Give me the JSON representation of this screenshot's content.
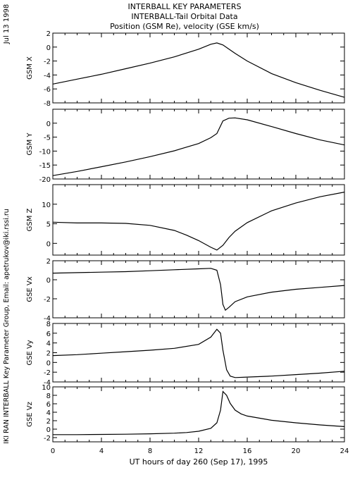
{
  "header": {
    "line1": "INTERBALL KEY PARAMETERS",
    "line2": "INTERBALL-Tail Orbital Data",
    "line3": "Position (GSM Re), velocity (GSE km/s)"
  },
  "side": {
    "date": "Jul 13 1998",
    "credit": "IKI RAN INTERBALL Key Parameter Group, Email: apetrukov@iki.rssi.ru"
  },
  "chart_data": {
    "type": "line",
    "x_label": "UT hours of day 260 (Sep 17), 1995",
    "x_range": [
      0,
      24
    ],
    "x_ticks": [
      0,
      4,
      8,
      12,
      16,
      20,
      24
    ],
    "panels": [
      {
        "label": "GSM X",
        "ylim": [
          -8,
          2
        ],
        "yticks": [
          -8,
          -6,
          -4,
          -2,
          0,
          2
        ],
        "x": [
          0,
          2,
          4,
          6,
          8,
          10,
          12,
          13,
          13.5,
          14,
          14.5,
          15,
          16,
          18,
          20,
          22,
          24
        ],
        "y": [
          -5.3,
          -4.6,
          -3.9,
          -3.1,
          -2.3,
          -1.4,
          -0.3,
          0.4,
          0.6,
          0.3,
          -0.3,
          -0.9,
          -2.0,
          -3.8,
          -5.1,
          -6.2,
          -7.2
        ]
      },
      {
        "label": "GSM Y",
        "ylim": [
          -20,
          5
        ],
        "yticks": [
          -20,
          -15,
          -10,
          -5,
          0
        ],
        "x": [
          0,
          2,
          4,
          6,
          8,
          10,
          12,
          13,
          13.5,
          14,
          14.5,
          15,
          16,
          18,
          20,
          22,
          24
        ],
        "y": [
          -18.8,
          -17.3,
          -15.6,
          -13.9,
          -12.0,
          -9.9,
          -7.3,
          -5.2,
          -3.7,
          0.8,
          1.8,
          1.9,
          1.2,
          -1.2,
          -3.7,
          -6.0,
          -7.8
        ]
      },
      {
        "label": "GSM Z",
        "ylim": [
          -3,
          15
        ],
        "yticks": [
          0,
          5,
          10
        ],
        "x": [
          0,
          2,
          4,
          6,
          8,
          10,
          11,
          12,
          13,
          13.5,
          14,
          14.5,
          15,
          16,
          18,
          20,
          22,
          24
        ],
        "y": [
          5.4,
          5.2,
          5.2,
          5.1,
          4.6,
          3.3,
          2.1,
          0.7,
          -1.0,
          -1.7,
          -0.5,
          1.5,
          3.1,
          5.3,
          8.3,
          10.3,
          11.9,
          13.1
        ]
      },
      {
        "label": "GSE Vx",
        "ylim": [
          -4,
          2
        ],
        "yticks": [
          -4,
          -2,
          0,
          2
        ],
        "x": [
          0,
          2,
          4,
          6,
          8,
          10,
          12,
          13,
          13.5,
          13.8,
          14.0,
          14.2,
          14.5,
          15,
          16,
          18,
          20,
          22,
          24
        ],
        "y": [
          0.7,
          0.75,
          0.8,
          0.85,
          0.95,
          1.05,
          1.15,
          1.2,
          1.0,
          -0.5,
          -2.6,
          -3.2,
          -2.9,
          -2.3,
          -1.8,
          -1.3,
          -1.0,
          -0.8,
          -0.6
        ]
      },
      {
        "label": "GSE Vy",
        "ylim": [
          -4,
          8
        ],
        "yticks": [
          -4,
          -2,
          0,
          2,
          4,
          6,
          8
        ],
        "x": [
          0,
          2,
          4,
          6,
          8,
          10,
          12,
          13,
          13.5,
          13.8,
          14.0,
          14.3,
          14.6,
          15,
          16,
          18,
          20,
          22,
          24
        ],
        "y": [
          1.4,
          1.6,
          1.9,
          2.2,
          2.5,
          2.9,
          3.7,
          5.2,
          6.8,
          6.0,
          2.5,
          -1.5,
          -2.8,
          -3.1,
          -3.0,
          -2.8,
          -2.5,
          -2.2,
          -1.8
        ]
      },
      {
        "label": "GSE Vz",
        "ylim": [
          -3,
          10
        ],
        "yticks": [
          -2,
          0,
          2,
          4,
          6,
          8,
          10
        ],
        "x": [
          0,
          2,
          4,
          6,
          8,
          10,
          11,
          12,
          13,
          13.5,
          13.8,
          14.0,
          14.3,
          14.6,
          15,
          15.5,
          16,
          17,
          18,
          20,
          22,
          24
        ],
        "y": [
          -1.3,
          -1.3,
          -1.25,
          -1.2,
          -1.1,
          -0.95,
          -0.8,
          -0.5,
          0.2,
          1.5,
          4.5,
          8.9,
          8.0,
          6.1,
          4.5,
          3.6,
          3.1,
          2.6,
          2.1,
          1.5,
          1.0,
          0.6
        ]
      }
    ]
  }
}
